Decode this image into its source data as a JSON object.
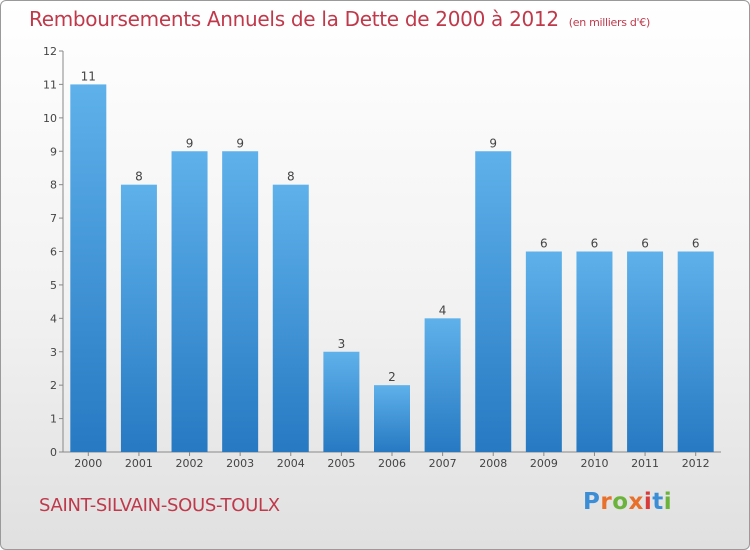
{
  "title": "Remboursements Annuels de la Dette de 2000 à 2012",
  "subtitle": "(en milliers d'€)",
  "commune": "SAINT-SILVAIN-SOUS-TOULX",
  "logo": {
    "letters": [
      "P",
      "r",
      "o",
      "x",
      "i",
      "t",
      "i"
    ],
    "colors": [
      "#3b8ed6",
      "#e8702a",
      "#6bb33a",
      "#e8702a",
      "#d93a3a",
      "#3b8ed6",
      "#6bb33a"
    ]
  },
  "colors": {
    "bar_light": "#5eb1ea",
    "bar_dark": "#2779c2",
    "text": "#c0394b"
  },
  "chart_data": {
    "type": "bar",
    "title": "Remboursements Annuels de la Dette de 2000 à 2012",
    "categories": [
      "2000",
      "2001",
      "2002",
      "2003",
      "2004",
      "2005",
      "2006",
      "2007",
      "2008",
      "2009",
      "2010",
      "2011",
      "2012"
    ],
    "values": [
      11,
      8,
      9,
      9,
      8,
      3,
      2,
      4,
      9,
      6,
      6,
      6,
      6
    ],
    "yticks": [
      "0",
      "1",
      "2",
      "3",
      "4",
      "5",
      "6",
      "7",
      "8",
      "9",
      "10",
      "11",
      "12"
    ],
    "ylim": [
      0,
      12
    ],
    "grid": false,
    "legend": "none"
  }
}
